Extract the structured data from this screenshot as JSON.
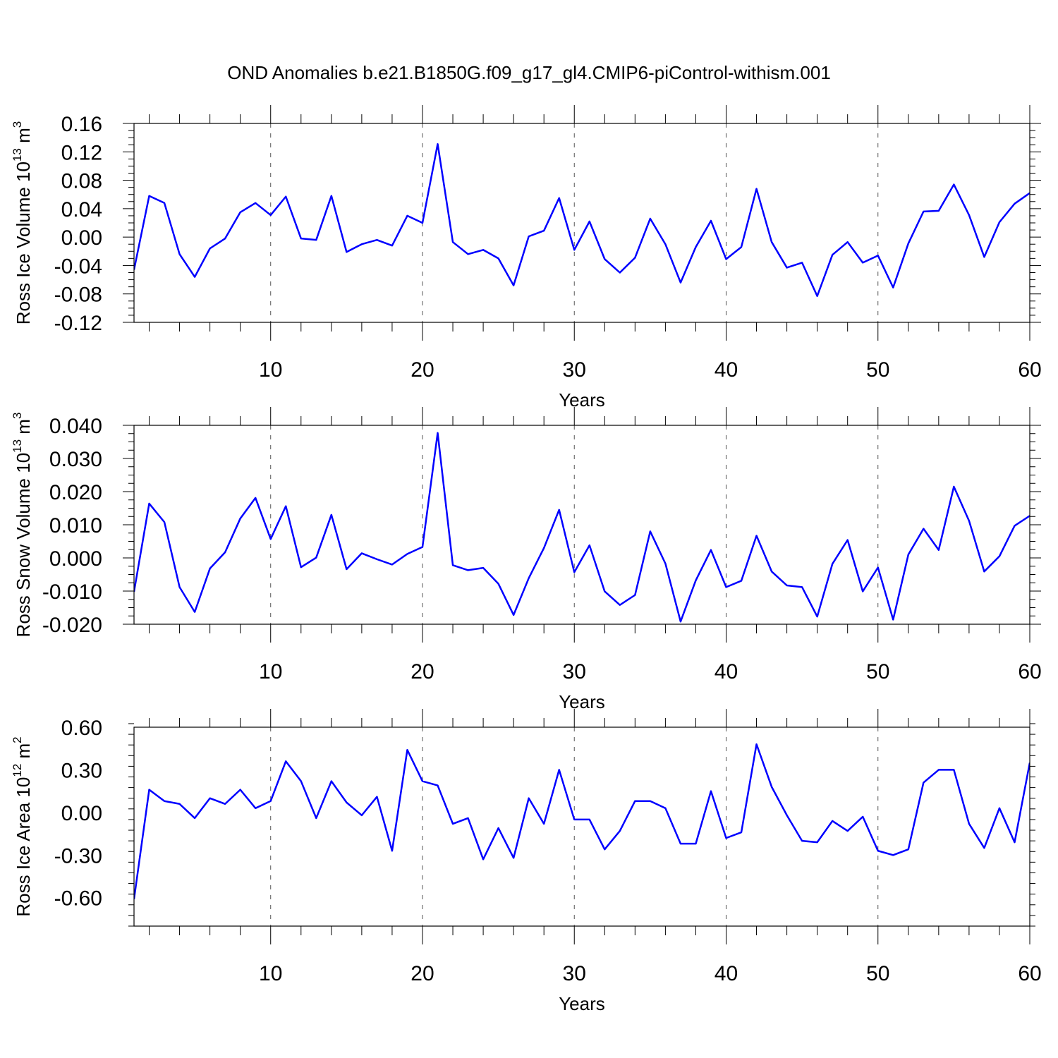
{
  "chart_data": {
    "title": "OND Anomalies b.e21.B1850G.f09_g17_gl4.CMIP6-piControl-withism.001",
    "line_color": "#0000ff",
    "panels": [
      {
        "type": "line",
        "name": "ice-volume",
        "ylabel_main": "Ross Ice Volume 10",
        "ylabel_sup": "13",
        "ylabel_unit": " m",
        "ylabel_unit_sup": "3",
        "xlabel": "Years",
        "xlim": [
          1,
          60
        ],
        "ylim": [
          -0.12,
          0.16
        ],
        "yticks": [
          -0.12,
          -0.08,
          -0.04,
          0.0,
          0.04,
          0.08,
          0.12,
          0.16
        ],
        "ytick_labels": [
          "-0.12",
          "-0.08",
          "-0.04",
          "0.00",
          "0.04",
          "0.08",
          "0.12",
          "0.16"
        ],
        "xticks": [
          10,
          20,
          30,
          40,
          50,
          60
        ],
        "xtick_labels": [
          "10",
          "20",
          "30",
          "40",
          "50",
          "60"
        ],
        "grid_x": [
          10,
          20,
          30,
          40,
          50
        ],
        "values": [
          -0.046,
          0.058,
          0.048,
          -0.024,
          -0.056,
          -0.016,
          -0.002,
          0.035,
          0.048,
          0.031,
          0.057,
          -0.002,
          -0.004,
          0.058,
          -0.021,
          -0.01,
          -0.004,
          -0.012,
          0.03,
          0.02,
          0.131,
          -0.007,
          -0.024,
          -0.018,
          -0.03,
          -0.068,
          0.001,
          0.009,
          0.055,
          -0.018,
          0.022,
          -0.031,
          -0.05,
          -0.029,
          0.026,
          -0.01,
          -0.064,
          -0.014,
          0.023,
          -0.031,
          -0.014,
          0.068,
          -0.007,
          -0.043,
          -0.036,
          -0.083,
          -0.025,
          -0.007,
          -0.036,
          -0.026,
          -0.071,
          -0.009,
          0.036,
          0.037,
          0.074,
          0.031,
          -0.028,
          0.021,
          0.047,
          0.062
        ]
      },
      {
        "type": "line",
        "name": "snow-volume",
        "ylabel_main": "Ross Snow Volume 10",
        "ylabel_sup": "13",
        "ylabel_unit": " m",
        "ylabel_unit_sup": "3",
        "xlabel": "Years",
        "xlim": [
          1,
          60
        ],
        "ylim": [
          -0.02,
          0.04
        ],
        "yticks": [
          -0.02,
          -0.01,
          0.0,
          0.01,
          0.02,
          0.03,
          0.04
        ],
        "ytick_labels": [
          "-0.020",
          "-0.010",
          "0.000",
          "0.010",
          "0.020",
          "0.030",
          "0.040"
        ],
        "xticks": [
          10,
          20,
          30,
          40,
          50,
          60
        ],
        "xtick_labels": [
          "10",
          "20",
          "30",
          "40",
          "50",
          "60"
        ],
        "grid_x": [
          10,
          20,
          30,
          40,
          50
        ],
        "values": [
          -0.0102,
          0.0164,
          0.0108,
          -0.0088,
          -0.0163,
          -0.0032,
          0.0017,
          0.0119,
          0.0181,
          0.0057,
          0.0156,
          -0.0028,
          0.0001,
          0.013,
          -0.0034,
          0.0014,
          -0.0004,
          -0.002,
          0.0012,
          0.0033,
          0.0377,
          -0.0022,
          -0.0037,
          -0.003,
          -0.0078,
          -0.0172,
          -0.0061,
          0.003,
          0.0145,
          -0.0043,
          0.0038,
          -0.0101,
          -0.0142,
          -0.0112,
          0.008,
          -0.0017,
          -0.0192,
          -0.0068,
          0.0024,
          -0.0088,
          -0.0069,
          0.0067,
          -0.0041,
          -0.0083,
          -0.0088,
          -0.0177,
          -0.0018,
          0.0054,
          -0.0101,
          -0.0029,
          -0.0186,
          0.001,
          0.0088,
          0.0024,
          0.0215,
          0.0112,
          -0.0041,
          0.0005,
          0.0097,
          0.0127
        ]
      },
      {
        "type": "line",
        "name": "ice-area",
        "ylabel_main": "Ross Ice Area 10",
        "ylabel_sup": "12",
        "ylabel_unit": " m",
        "ylabel_unit_sup": "2",
        "xlabel": "Years",
        "xlim": [
          1,
          60
        ],
        "ylim": [
          -0.8,
          0.6
        ],
        "yticks": [
          -0.6,
          -0.3,
          0.0,
          0.3,
          0.6
        ],
        "ytick_labels": [
          "-0.60",
          "-0.30",
          "0.00",
          "0.30",
          "0.60"
        ],
        "xticks": [
          10,
          20,
          30,
          40,
          50,
          60
        ],
        "xtick_labels": [
          "10",
          "20",
          "30",
          "40",
          "50",
          "60"
        ],
        "grid_x": [
          10,
          20,
          30,
          40,
          50
        ],
        "values": [
          -0.61,
          0.16,
          0.08,
          0.06,
          -0.04,
          0.1,
          0.06,
          0.16,
          0.03,
          0.08,
          0.36,
          0.22,
          -0.04,
          0.22,
          0.07,
          -0.02,
          0.11,
          -0.27,
          0.44,
          0.22,
          0.19,
          -0.08,
          -0.04,
          -0.33,
          -0.11,
          -0.32,
          0.1,
          -0.08,
          0.3,
          -0.05,
          -0.05,
          -0.26,
          -0.13,
          0.08,
          0.08,
          0.03,
          -0.22,
          -0.22,
          0.15,
          -0.18,
          -0.14,
          0.48,
          0.18,
          -0.02,
          -0.2,
          -0.21,
          -0.06,
          -0.13,
          -0.03,
          -0.27,
          -0.3,
          -0.26,
          0.21,
          0.3,
          0.3,
          -0.08,
          -0.25,
          0.03,
          -0.21,
          0.35
        ]
      }
    ]
  }
}
